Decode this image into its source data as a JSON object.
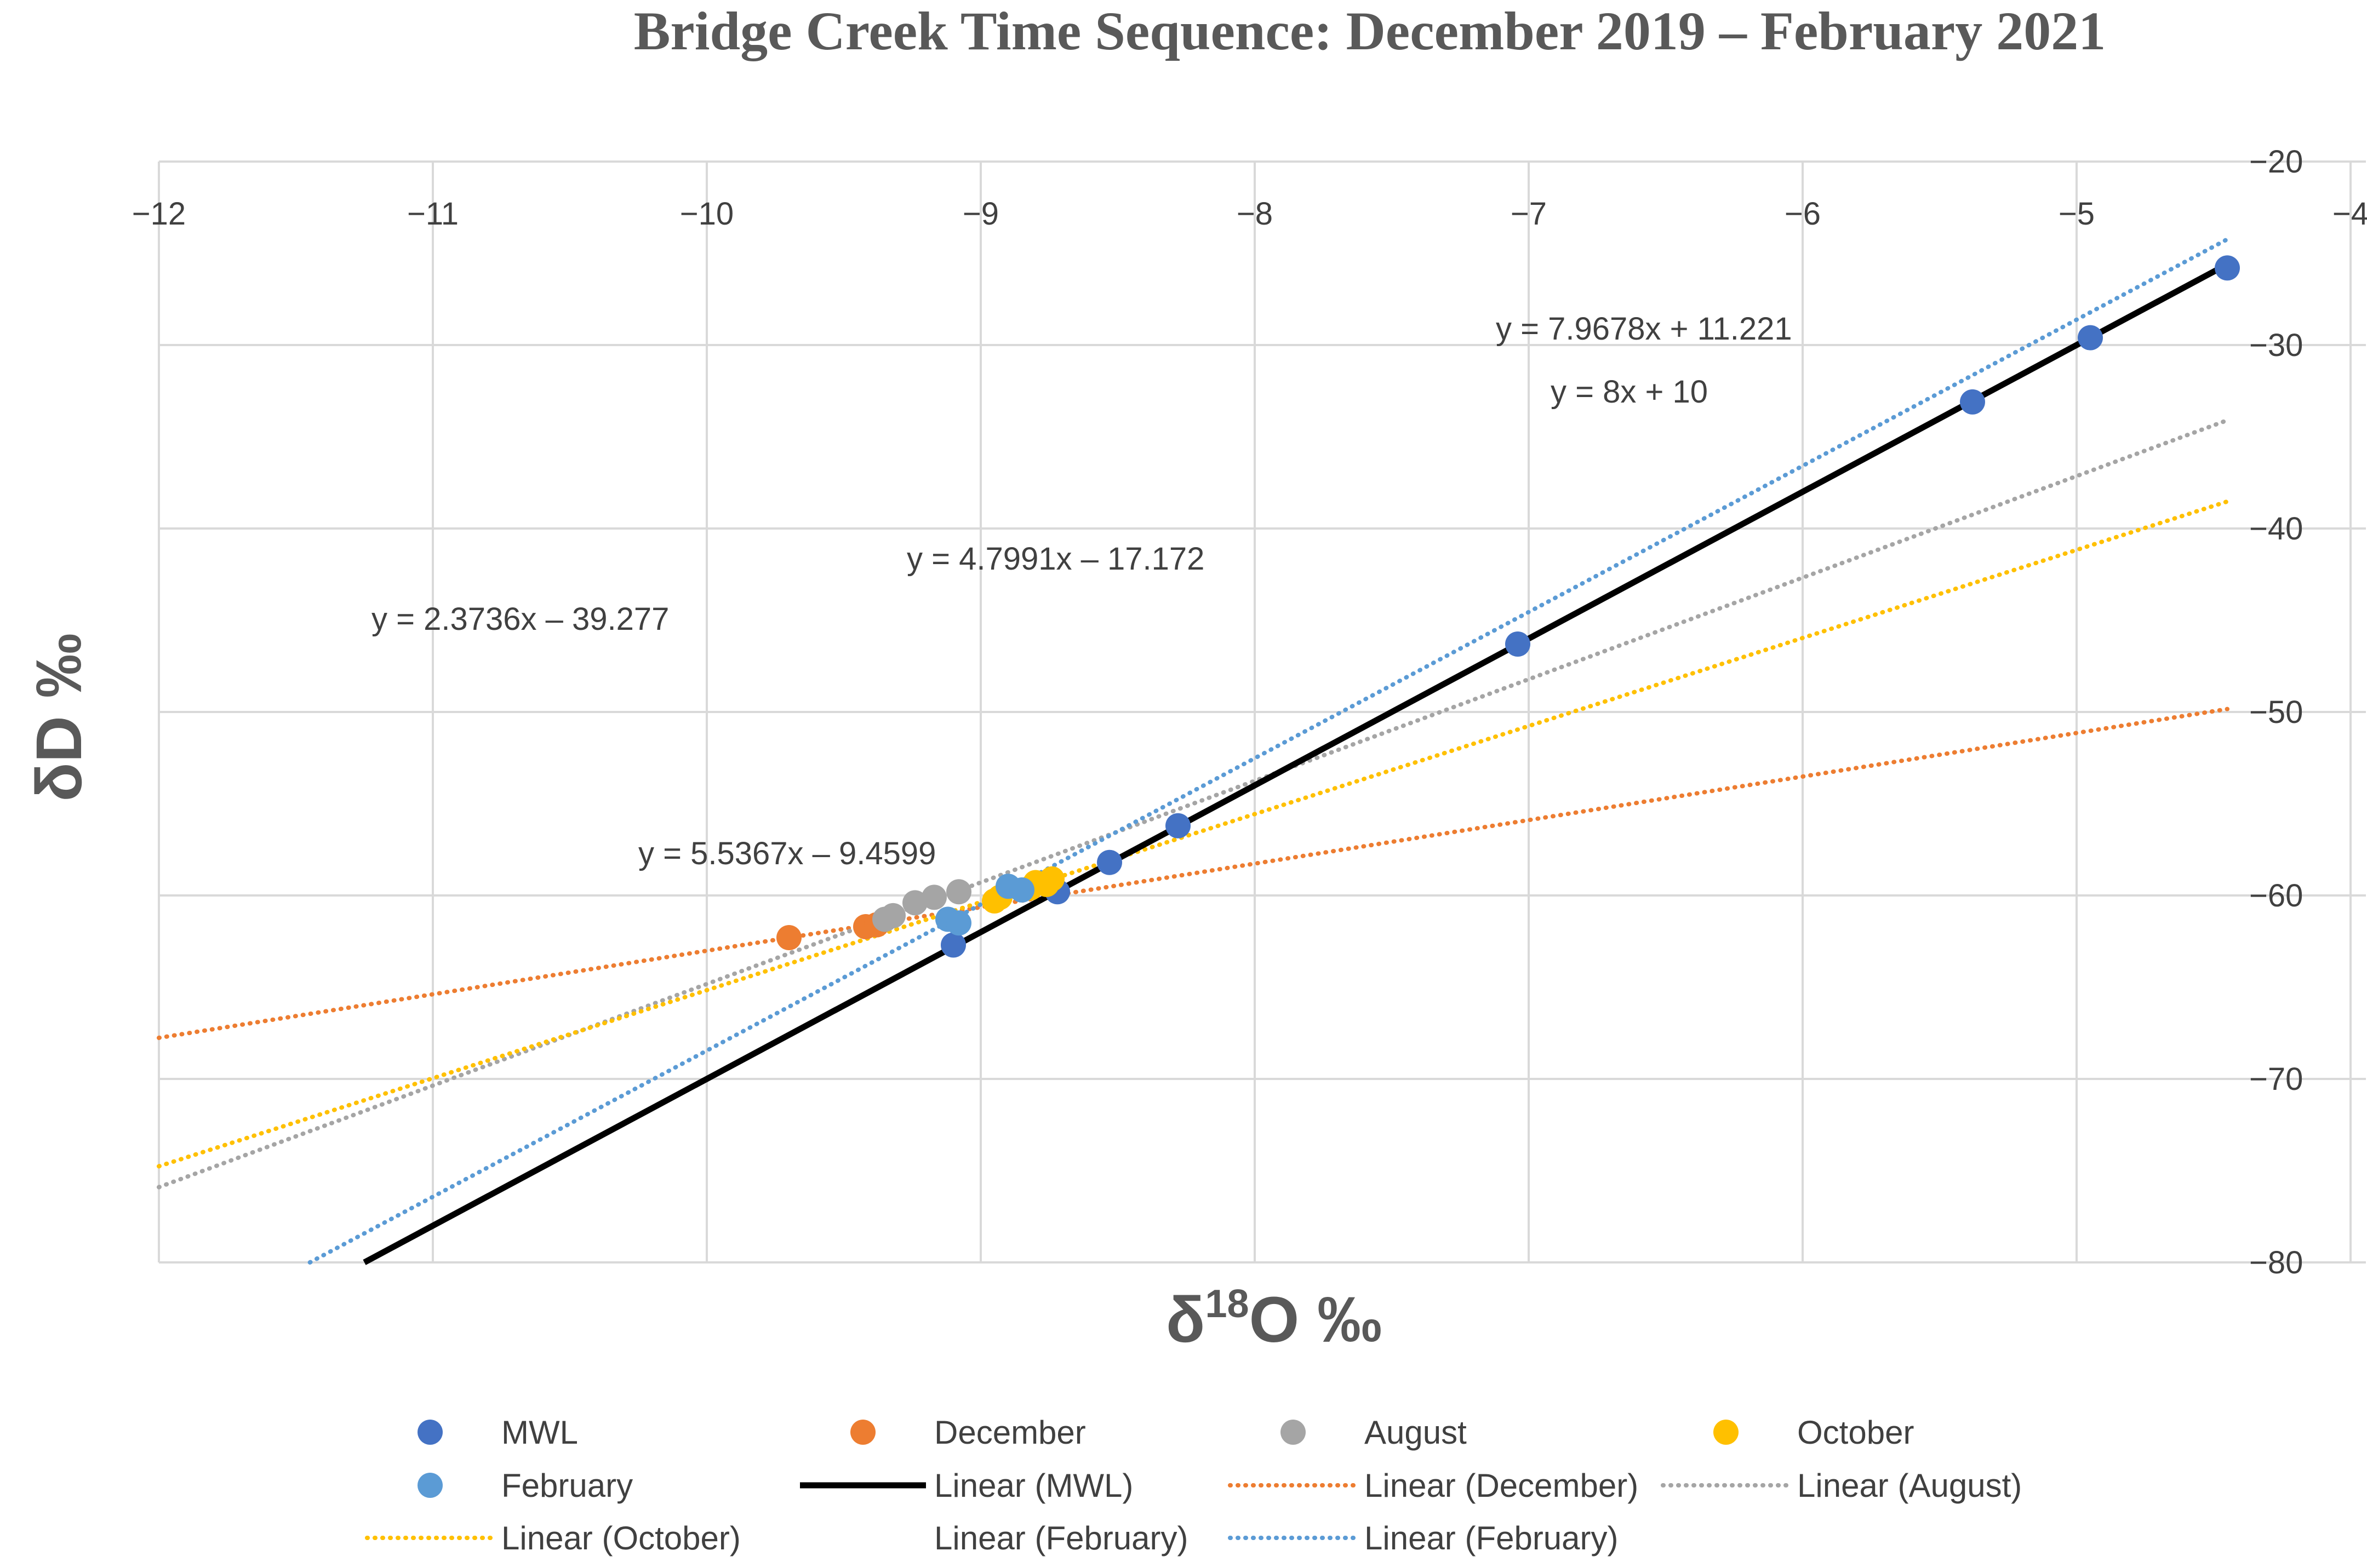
{
  "chart_data": {
    "type": "scatter",
    "title": "Bridge Creek Time Sequence: December 2019 – February 2021",
    "xlabel": "δ",
    "xlabel_sup": "18",
    "xlabel_tail": "O ‰",
    "ylabel": "δD ‰",
    "xlim": [
      -12,
      -4
    ],
    "ylim": [
      -80,
      -20
    ],
    "x_ticks": [
      "−12",
      "−11",
      "−10",
      "−9",
      "−8",
      "−7",
      "−6",
      "−5",
      "−4"
    ],
    "x_tick_values": [
      -12,
      -11,
      -10,
      -9,
      -8,
      -7,
      -6,
      -5,
      -4
    ],
    "y_ticks": [
      "−20",
      "−30",
      "−40",
      "−50",
      "−60",
      "−70",
      "−80"
    ],
    "y_tick_values": [
      -20,
      -30,
      -40,
      -50,
      -60,
      -70,
      -80
    ],
    "series": [
      {
        "name": "MWL",
        "color": "#4472C4",
        "points": [
          [
            -4.45,
            -25.8
          ],
          [
            -4.95,
            -29.6
          ],
          [
            -5.38,
            -33.1
          ],
          [
            -7.04,
            -46.3
          ],
          [
            -8.28,
            -56.2
          ],
          [
            -8.53,
            -58.2
          ],
          [
            -8.72,
            -59.8
          ],
          [
            -9.1,
            -62.7
          ]
        ]
      },
      {
        "name": "December",
        "color": "#ED7D31",
        "points": [
          [
            -9.7,
            -62.3
          ],
          [
            -9.42,
            -61.7
          ],
          [
            -9.38,
            -61.6
          ]
        ]
      },
      {
        "name": "August",
        "color": "#A5A5A5",
        "points": [
          [
            -9.35,
            -61.3
          ],
          [
            -9.32,
            -61.1
          ],
          [
            -9.24,
            -60.4
          ],
          [
            -9.17,
            -60.1
          ],
          [
            -9.08,
            -59.8
          ]
        ]
      },
      {
        "name": "October",
        "color": "#FFC000",
        "points": [
          [
            -8.95,
            -60.3
          ],
          [
            -8.93,
            -60.1
          ],
          [
            -8.82,
            -59.6
          ],
          [
            -8.8,
            -59.3
          ],
          [
            -8.76,
            -59.4
          ],
          [
            -8.74,
            -59.1
          ]
        ]
      },
      {
        "name": "February",
        "color": "#5B9BD5",
        "points": [
          [
            -9.12,
            -61.3
          ],
          [
            -9.08,
            -61.5
          ],
          [
            -8.9,
            -59.5
          ],
          [
            -8.85,
            -59.7
          ]
        ]
      }
    ],
    "trendlines": [
      {
        "name": "Linear (December)",
        "color": "#ED7D31",
        "style": "dotted",
        "slope": 2.3736,
        "intercept": -39.277,
        "x_range": [
          -12,
          -4.45
        ]
      },
      {
        "name": "Linear (August)",
        "color": "#A5A5A5",
        "style": "dotted",
        "slope": 5.5367,
        "intercept": -9.4599,
        "x_range": [
          -12,
          -4.45
        ]
      },
      {
        "name": "Linear (October)",
        "color": "#FFC000",
        "style": "dotted",
        "slope": 4.7991,
        "intercept": -17.172,
        "x_range": [
          -12,
          -4.45
        ]
      },
      {
        "name": "Linear (February)",
        "color": "#5B9BD5",
        "style": "dotted",
        "slope": 7.9678,
        "intercept": 11.221,
        "x_range": [
          -12,
          -4.45
        ]
      },
      {
        "name": "Linear (MWL)",
        "color": "#000000",
        "style": "solid",
        "slope": 8,
        "intercept": 10,
        "x_range": [
          -12,
          -4.45
        ]
      }
    ],
    "equations": [
      {
        "text": "y = 7.9678x + 11.221"
      },
      {
        "text": "y = 8x + 10"
      },
      {
        "text": "y = 4.7991x – 17.172"
      },
      {
        "text": "y = 2.3736x – 39.277"
      },
      {
        "text": "y = 5.5367x – 9.4599"
      }
    ],
    "legend": [
      {
        "label": "MWL",
        "kind": "marker",
        "color": "#4472C4"
      },
      {
        "label": "December",
        "kind": "marker",
        "color": "#ED7D31"
      },
      {
        "label": "August",
        "kind": "marker",
        "color": "#A5A5A5"
      },
      {
        "label": "October",
        "kind": "marker",
        "color": "#FFC000"
      },
      {
        "label": "February",
        "kind": "marker",
        "color": "#5B9BD5"
      },
      {
        "label": "Linear (MWL)",
        "kind": "solid",
        "color": "#000000"
      },
      {
        "label": "Linear (December)",
        "kind": "dotted",
        "color": "#ED7D31"
      },
      {
        "label": "Linear (August)",
        "kind": "dotted",
        "color": "#A5A5A5"
      },
      {
        "label": "Linear (October)",
        "kind": "dotted",
        "color": "#FFC000"
      },
      {
        "label": "Linear (February)",
        "kind": "none",
        "color": ""
      },
      {
        "label": "Linear (February)",
        "kind": "dotted",
        "color": "#5B9BD5"
      }
    ],
    "legend_position": "bottom",
    "grid": true
  }
}
